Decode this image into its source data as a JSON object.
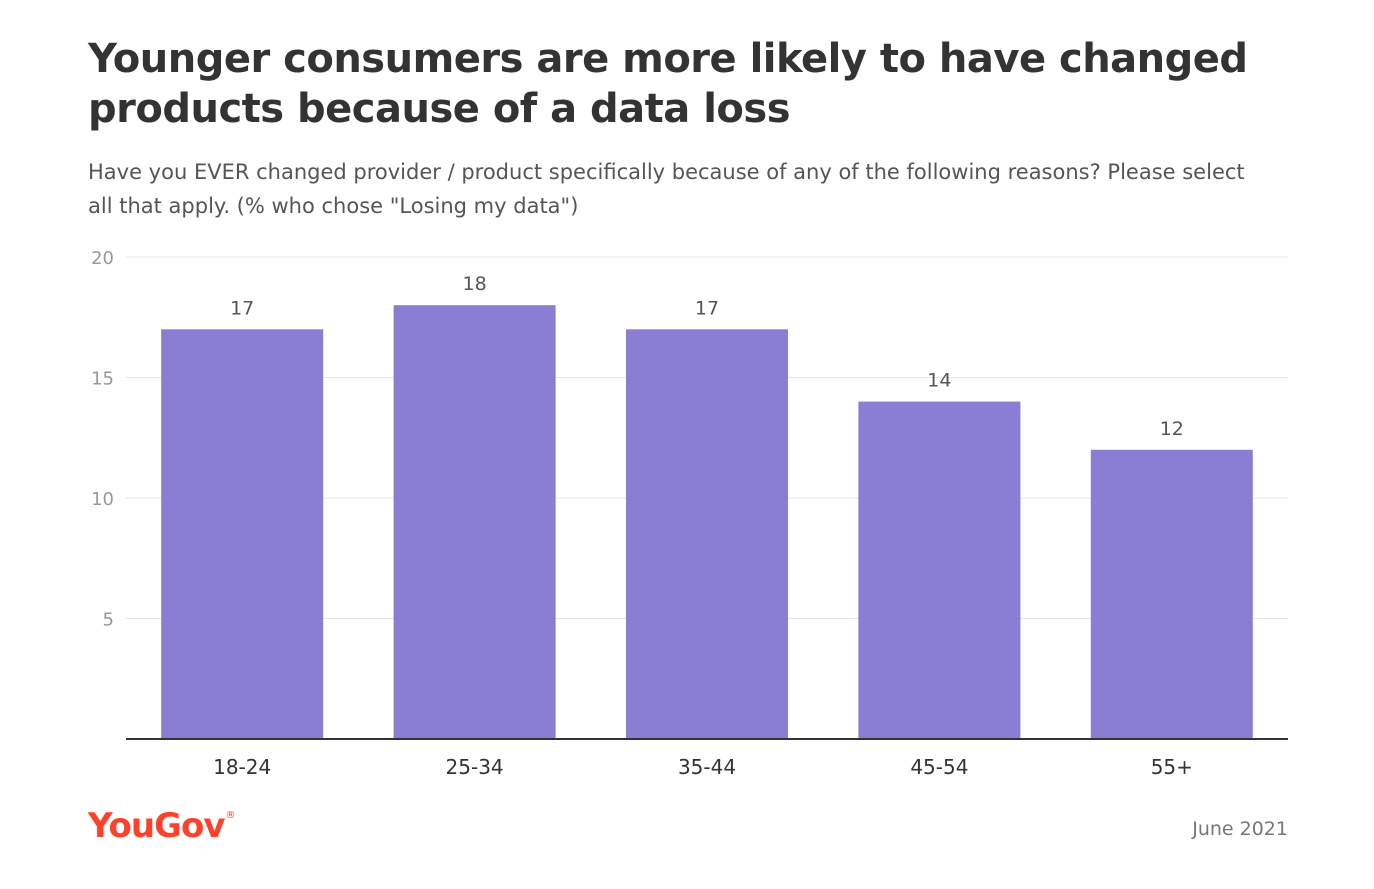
{
  "header": {
    "title": "Younger consumers are more likely to have changed products because of a data loss",
    "subtitle": "Have you EVER changed provider / product specifically because of any of the following reasons? Please select all that apply. (% who chose \"Losing my data\")"
  },
  "footer": {
    "brand": "YouGov",
    "brand_mark": "®",
    "date": "June 2021"
  },
  "colors": {
    "bar": "#8a7dd4",
    "grid": "#e6e6e6",
    "axis": "#333333",
    "tick_text": "#999999",
    "label_text": "#555555",
    "brand": "#ff412c"
  },
  "chart_data": {
    "type": "bar",
    "title": "Younger consumers are more likely to have changed products because of a data loss",
    "categories": [
      "18-24",
      "25-34",
      "35-44",
      "45-54",
      "55+"
    ],
    "values": [
      17,
      18,
      17,
      14,
      12
    ],
    "data_labels": [
      "17",
      "18",
      "17",
      "14",
      "12"
    ],
    "ylim": [
      0,
      20
    ],
    "yticks": [
      5,
      10,
      15,
      20
    ],
    "ytick_labels": [
      "5",
      "10",
      "15",
      "20"
    ],
    "xlabel": "",
    "ylabel": "",
    "grid": true,
    "legend": "none"
  }
}
